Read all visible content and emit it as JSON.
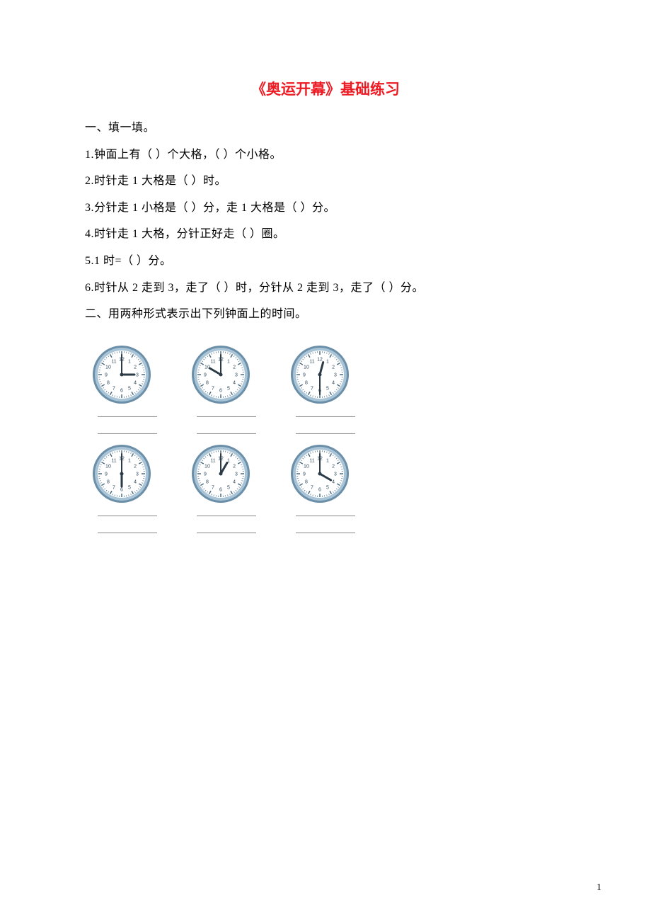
{
  "title": "《奥运开幕》基础练习",
  "title_color": "#ed1c24",
  "body_fontsize": 16,
  "section1": {
    "heading": "一、填一填。",
    "items": [
      "1.钟面上有（   ）个大格，（   ）个小格。",
      "2.时针走 1 大格是（   ）时。",
      "3.分针走 1 小格是（   ）分，走 1 大格是（   ）分。",
      "4.时针走 1 大格，分针正好走（   ）圈。",
      "5.1 时=（    ）分。",
      "6.时针从 2 走到 3，走了（   ）时，分针从 2 走到 3，走了（   ）分。"
    ]
  },
  "section2": {
    "heading": "二、用两种形式表示出下列钟面上的时间。",
    "clock_style": {
      "diameter": 84,
      "rim_outer": "#6b8fa8",
      "rim_inner": "#a8c4d6",
      "face": "#ffffff",
      "tick_color": "#4a6a80",
      "number_color": "#2f4a5c",
      "number_fontsize": 7,
      "hand_color": "#2a3a46",
      "hour_hand_len": 18,
      "minute_hand_len": 28,
      "hour_hand_w": 3,
      "minute_hand_w": 2
    },
    "rows": [
      {
        "clocks": [
          {
            "hour": 3,
            "minute": 0
          },
          {
            "hour": 10,
            "minute": 0
          },
          {
            "hour": 12,
            "minute": 30
          }
        ]
      },
      {
        "clocks": [
          {
            "hour": 6,
            "minute": 0
          },
          {
            "hour": 1,
            "minute": 0
          },
          {
            "hour": 4,
            "minute": 0
          }
        ]
      }
    ],
    "blank_rows_per_group": 2,
    "blank_color": "#8a8a8a"
  },
  "page_number": "1"
}
